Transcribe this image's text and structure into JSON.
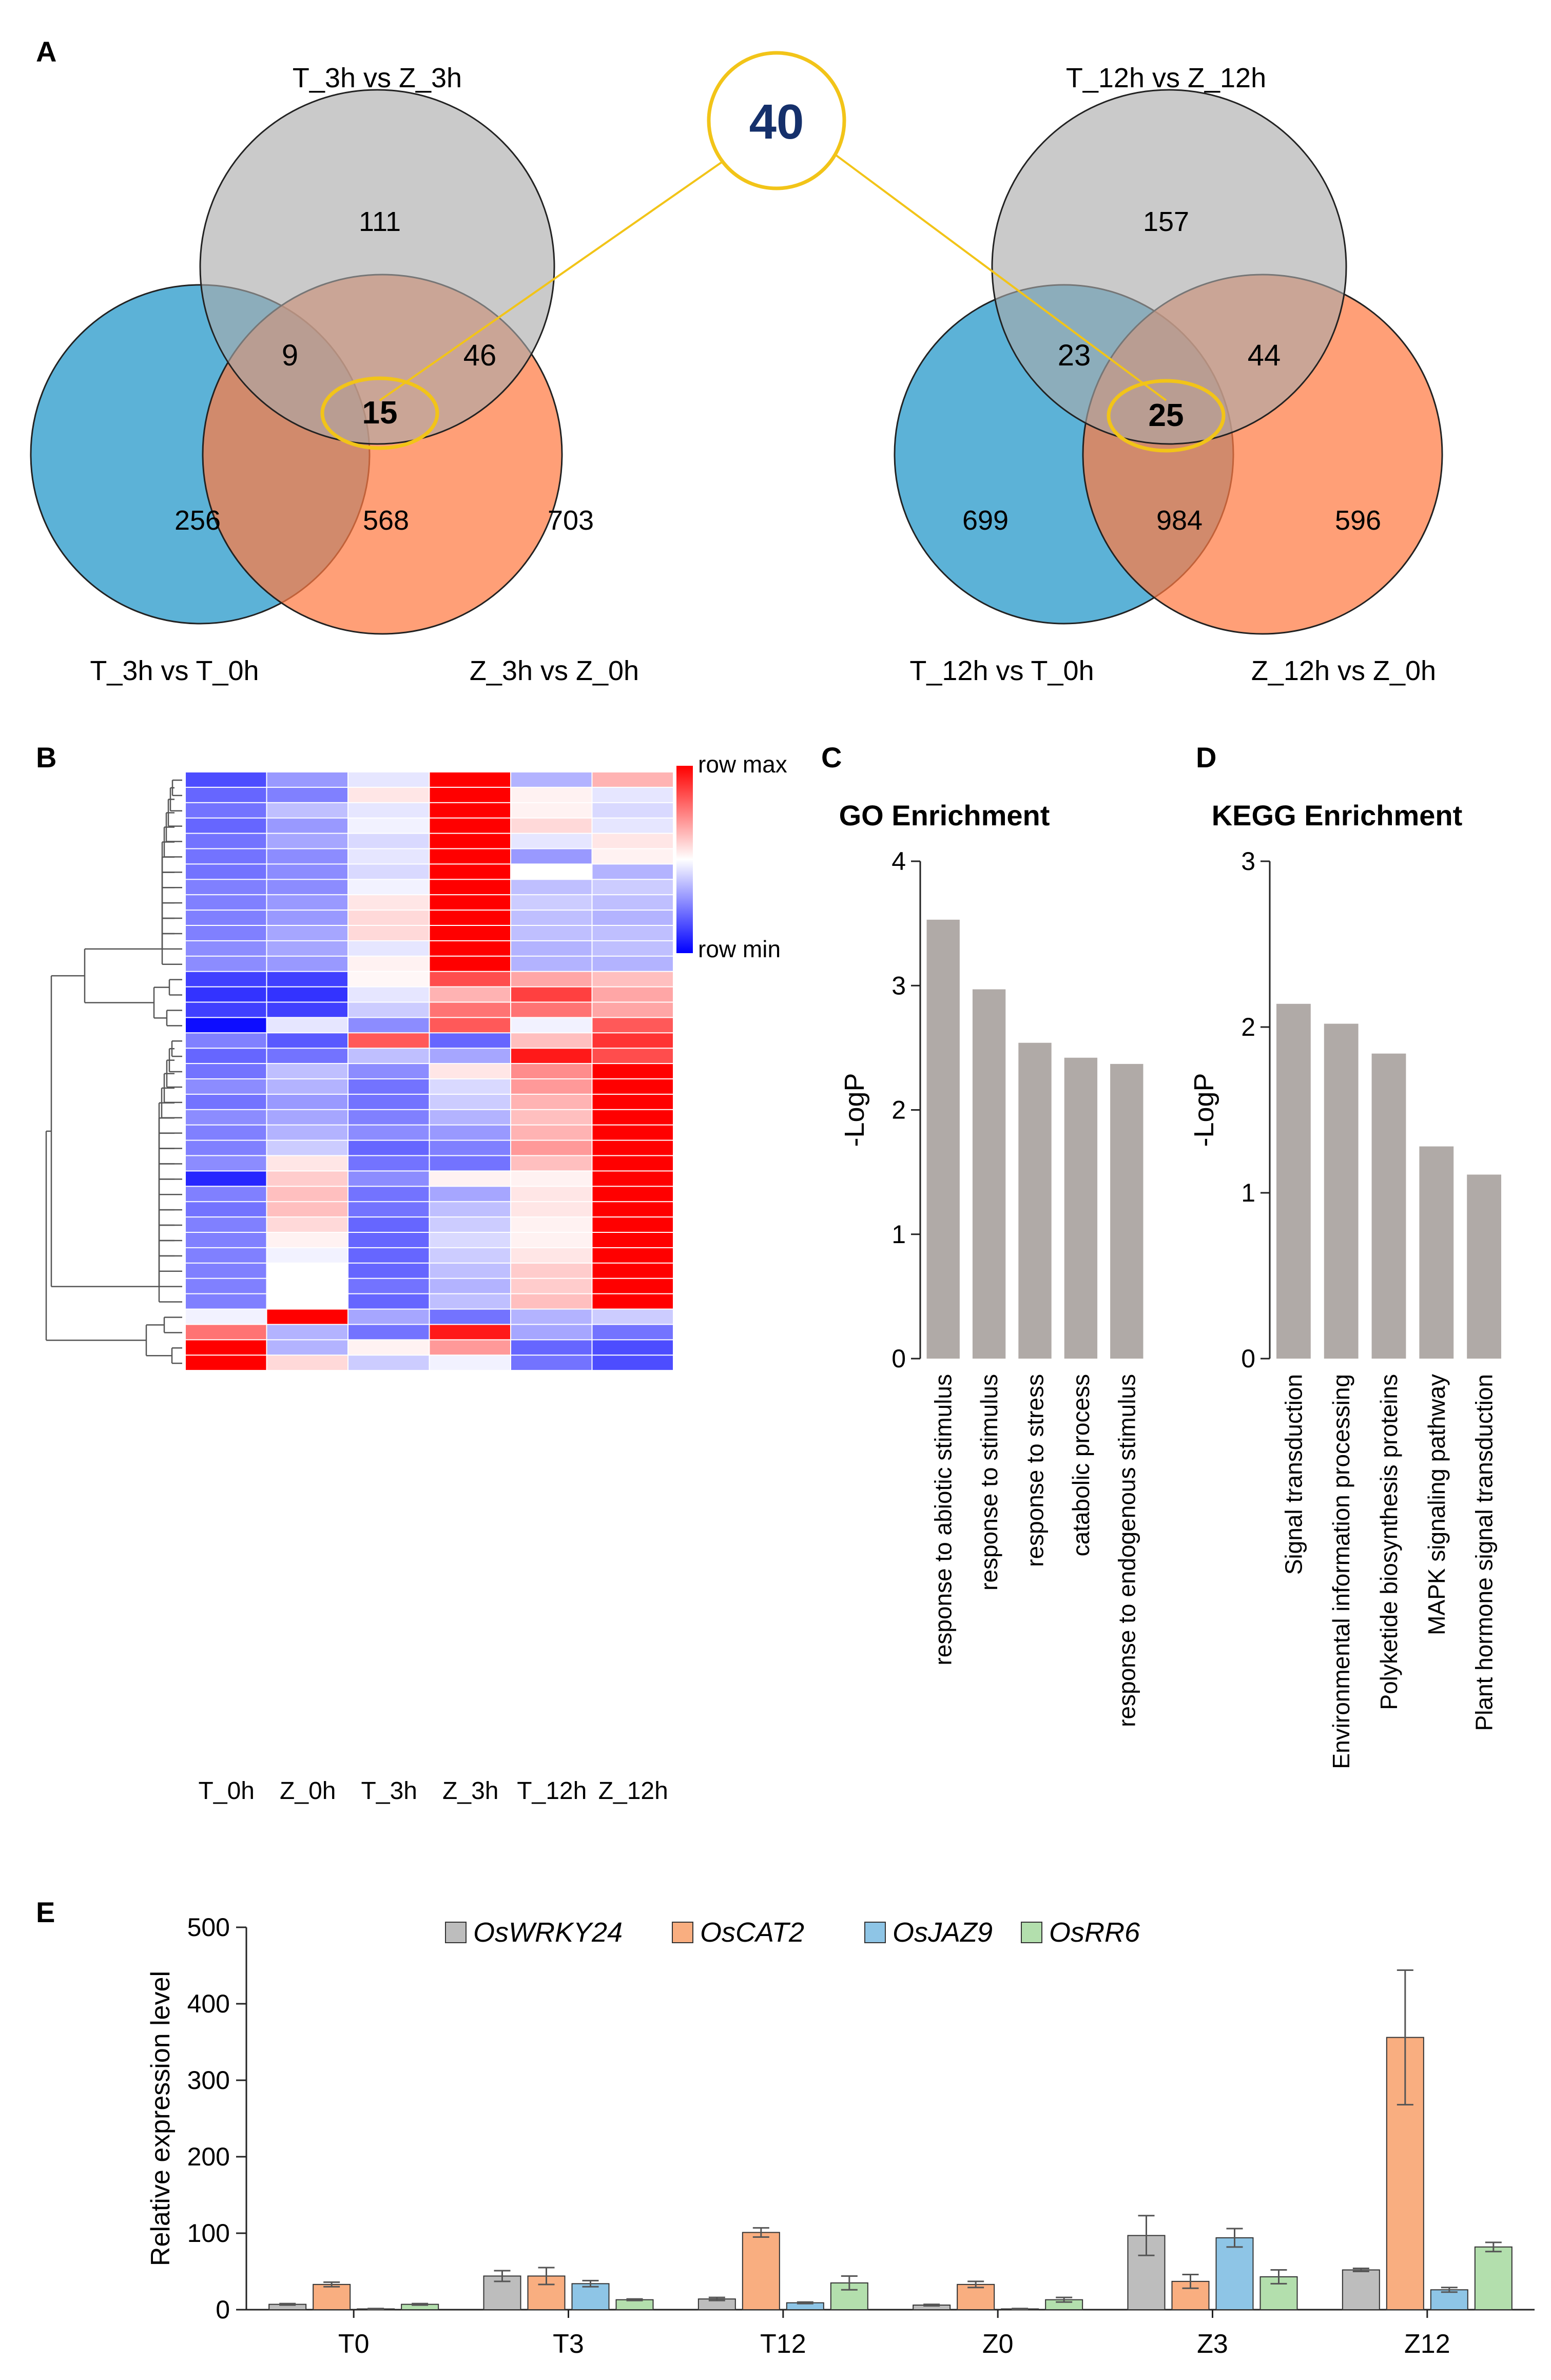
{
  "panels": {
    "A": "A",
    "B": "B",
    "C": "C",
    "D": "D",
    "E": "E"
  },
  "colors": {
    "gray": "#aaaaaa",
    "blue": "#2e9ccc",
    "orange": "#ff7a43",
    "highlight": "#f2c418",
    "bar": "#b0aaa7",
    "qpcr": [
      "#bdbdbd",
      "#f9ae80",
      "#8ec5e6",
      "#b3dfad"
    ]
  },
  "venn_left": {
    "labels": {
      "top": "T_3h vs Z_3h",
      "left": "T_3h vs T_0h",
      "right": "Z_3h vs Z_0h"
    },
    "counts": {
      "top_only": "111",
      "top_left": "9",
      "top_right": "46",
      "center": "15",
      "left_only": "256",
      "left_right": "568",
      "right_only": "703"
    }
  },
  "venn_right": {
    "labels": {
      "top": "T_12h vs Z_12h",
      "left": "T_12h vs T_0h",
      "right": "Z_12h vs Z_0h"
    },
    "counts": {
      "top_only": "157",
      "top_left": "23",
      "top_right": "44",
      "center": "25",
      "left_only": "699",
      "left_right": "984",
      "right_only": "596"
    }
  },
  "shared_total": "40",
  "heatmap": {
    "columns": [
      "T_0h",
      "Z_0h",
      "T_3h",
      "Z_3h",
      "T_12h",
      "Z_12h"
    ],
    "legend": {
      "max": "row max",
      "min": "row min"
    },
    "rows": [
      [
        -0.7,
        -0.4,
        -0.1,
        1,
        -0.3,
        0.3
      ],
      [
        -0.6,
        -0.5,
        0.1,
        1,
        0.05,
        -0.1
      ],
      [
        -0.55,
        -0.25,
        -0.1,
        1,
        0.05,
        -0.15
      ],
      [
        -0.6,
        -0.4,
        -0.05,
        1,
        0.15,
        -0.1
      ],
      [
        -0.55,
        -0.35,
        -0.15,
        1,
        -0.1,
        0.1
      ],
      [
        -0.55,
        -0.45,
        -0.1,
        1,
        -0.4,
        0.05
      ],
      [
        -0.55,
        -0.45,
        -0.15,
        1,
        0,
        -0.3
      ],
      [
        -0.5,
        -0.45,
        -0.05,
        1,
        -0.25,
        -0.2
      ],
      [
        -0.5,
        -0.4,
        0.1,
        1,
        -0.2,
        -0.25
      ],
      [
        -0.5,
        -0.4,
        0.15,
        1,
        -0.25,
        -0.3
      ],
      [
        -0.5,
        -0.35,
        0.15,
        1,
        -0.25,
        -0.25
      ],
      [
        -0.45,
        -0.35,
        -0.1,
        1,
        -0.3,
        -0.25
      ],
      [
        -0.45,
        -0.4,
        0.05,
        1,
        -0.3,
        -0.3
      ],
      [
        -0.75,
        -0.75,
        0.03,
        0.7,
        0.35,
        0.25
      ],
      [
        -0.8,
        -0.8,
        -0.1,
        0.3,
        0.75,
        0.35
      ],
      [
        -0.75,
        -0.75,
        -0.2,
        0.55,
        0.55,
        0.35
      ],
      [
        -0.95,
        -0.1,
        -0.45,
        0.65,
        -0.05,
        0.65
      ],
      [
        -0.5,
        -0.65,
        0.65,
        -0.6,
        0.25,
        0.8
      ],
      [
        -0.6,
        -0.55,
        -0.25,
        -0.35,
        0.9,
        0.7
      ],
      [
        -0.55,
        -0.25,
        -0.45,
        0.1,
        0.45,
        1
      ],
      [
        -0.45,
        -0.3,
        -0.55,
        -0.15,
        0.4,
        1
      ],
      [
        -0.55,
        -0.4,
        -0.55,
        -0.2,
        0.3,
        1
      ],
      [
        -0.45,
        -0.35,
        -0.5,
        -0.3,
        0.25,
        1
      ],
      [
        -0.5,
        -0.3,
        -0.45,
        -0.4,
        0.3,
        1
      ],
      [
        -0.5,
        -0.2,
        -0.6,
        -0.5,
        0.4,
        1
      ],
      [
        -0.45,
        0.1,
        -0.55,
        -0.55,
        0.25,
        1
      ],
      [
        -0.85,
        0.2,
        -0.45,
        0.05,
        0.05,
        1
      ],
      [
        -0.5,
        0.25,
        -0.55,
        -0.35,
        0.1,
        1
      ],
      [
        -0.55,
        0.25,
        -0.55,
        -0.25,
        0.1,
        1
      ],
      [
        -0.5,
        0.15,
        -0.6,
        -0.2,
        0.05,
        1
      ],
      [
        -0.5,
        0.05,
        -0.6,
        -0.15,
        0.05,
        1
      ],
      [
        -0.5,
        -0.05,
        -0.6,
        -0.2,
        0.1,
        1
      ],
      [
        -0.5,
        0,
        -0.6,
        -0.25,
        0.2,
        1
      ],
      [
        -0.5,
        0,
        -0.55,
        -0.3,
        0.2,
        1
      ],
      [
        -0.5,
        0,
        -0.6,
        -0.25,
        0.25,
        1
      ],
      [
        -0.05,
        1,
        -0.35,
        -0.55,
        -0.3,
        -0.2
      ],
      [
        0.55,
        -0.3,
        -0.55,
        0.9,
        -0.35,
        -0.55
      ],
      [
        1,
        -0.3,
        0.05,
        0.4,
        -0.6,
        -0.7
      ],
      [
        1,
        0.15,
        -0.2,
        -0.05,
        -0.55,
        -0.7
      ]
    ]
  },
  "chart_data": [
    {
      "type": "bar",
      "title": "GO Enrichment",
      "ylabel": "-LogP",
      "xlabel": "",
      "ylim": [
        0,
        4
      ],
      "yticks": [
        "0",
        "1",
        "2",
        "3",
        "4"
      ],
      "categories": [
        "response to abiotic stimulus",
        "response to stimulus",
        "response to stress",
        "catabolic process",
        "response to endogenous stimulus"
      ],
      "values": [
        3.53,
        2.97,
        2.54,
        2.42,
        2.37
      ]
    },
    {
      "type": "bar",
      "title": "KEGG Enrichment",
      "ylabel": "-LogP",
      "xlabel": "",
      "ylim": [
        0,
        3
      ],
      "yticks": [
        "0",
        "1",
        "2",
        "3"
      ],
      "categories": [
        "Signal transduction",
        "Environmental information processing",
        "Polyketide biosynthesis proteins",
        "MAPK signaling pathway",
        "Plant hormone signal transduction"
      ],
      "values": [
        2.14,
        2.02,
        1.84,
        1.28,
        1.11
      ]
    },
    {
      "type": "bar",
      "title": "",
      "ylabel": "Relative expression level",
      "xlabel": "",
      "ylim": [
        0,
        500
      ],
      "yticks": [
        "0",
        "100",
        "200",
        "300",
        "400",
        "500"
      ],
      "categories": [
        "T0",
        "T3",
        "T12",
        "Z0",
        "Z3",
        "Z12"
      ],
      "series": [
        {
          "name": "OsWRKY24",
          "values": [
            7,
            44,
            14,
            6,
            97,
            52
          ],
          "errors": [
            1,
            7,
            2,
            1,
            26,
            2
          ]
        },
        {
          "name": "OsCAT2",
          "values": [
            33,
            44,
            101,
            33,
            37,
            356
          ],
          "errors": [
            3,
            11,
            6,
            4,
            9,
            88
          ]
        },
        {
          "name": "OsJAZ9",
          "values": [
            1,
            34,
            9,
            1,
            94,
            26
          ],
          "errors": [
            0.5,
            4,
            1,
            0.5,
            12,
            3
          ]
        },
        {
          "name": "OsRR6",
          "values": [
            7,
            13,
            35,
            13,
            43,
            82
          ],
          "errors": [
            1,
            1,
            9,
            3,
            9,
            6
          ]
        }
      ]
    }
  ]
}
